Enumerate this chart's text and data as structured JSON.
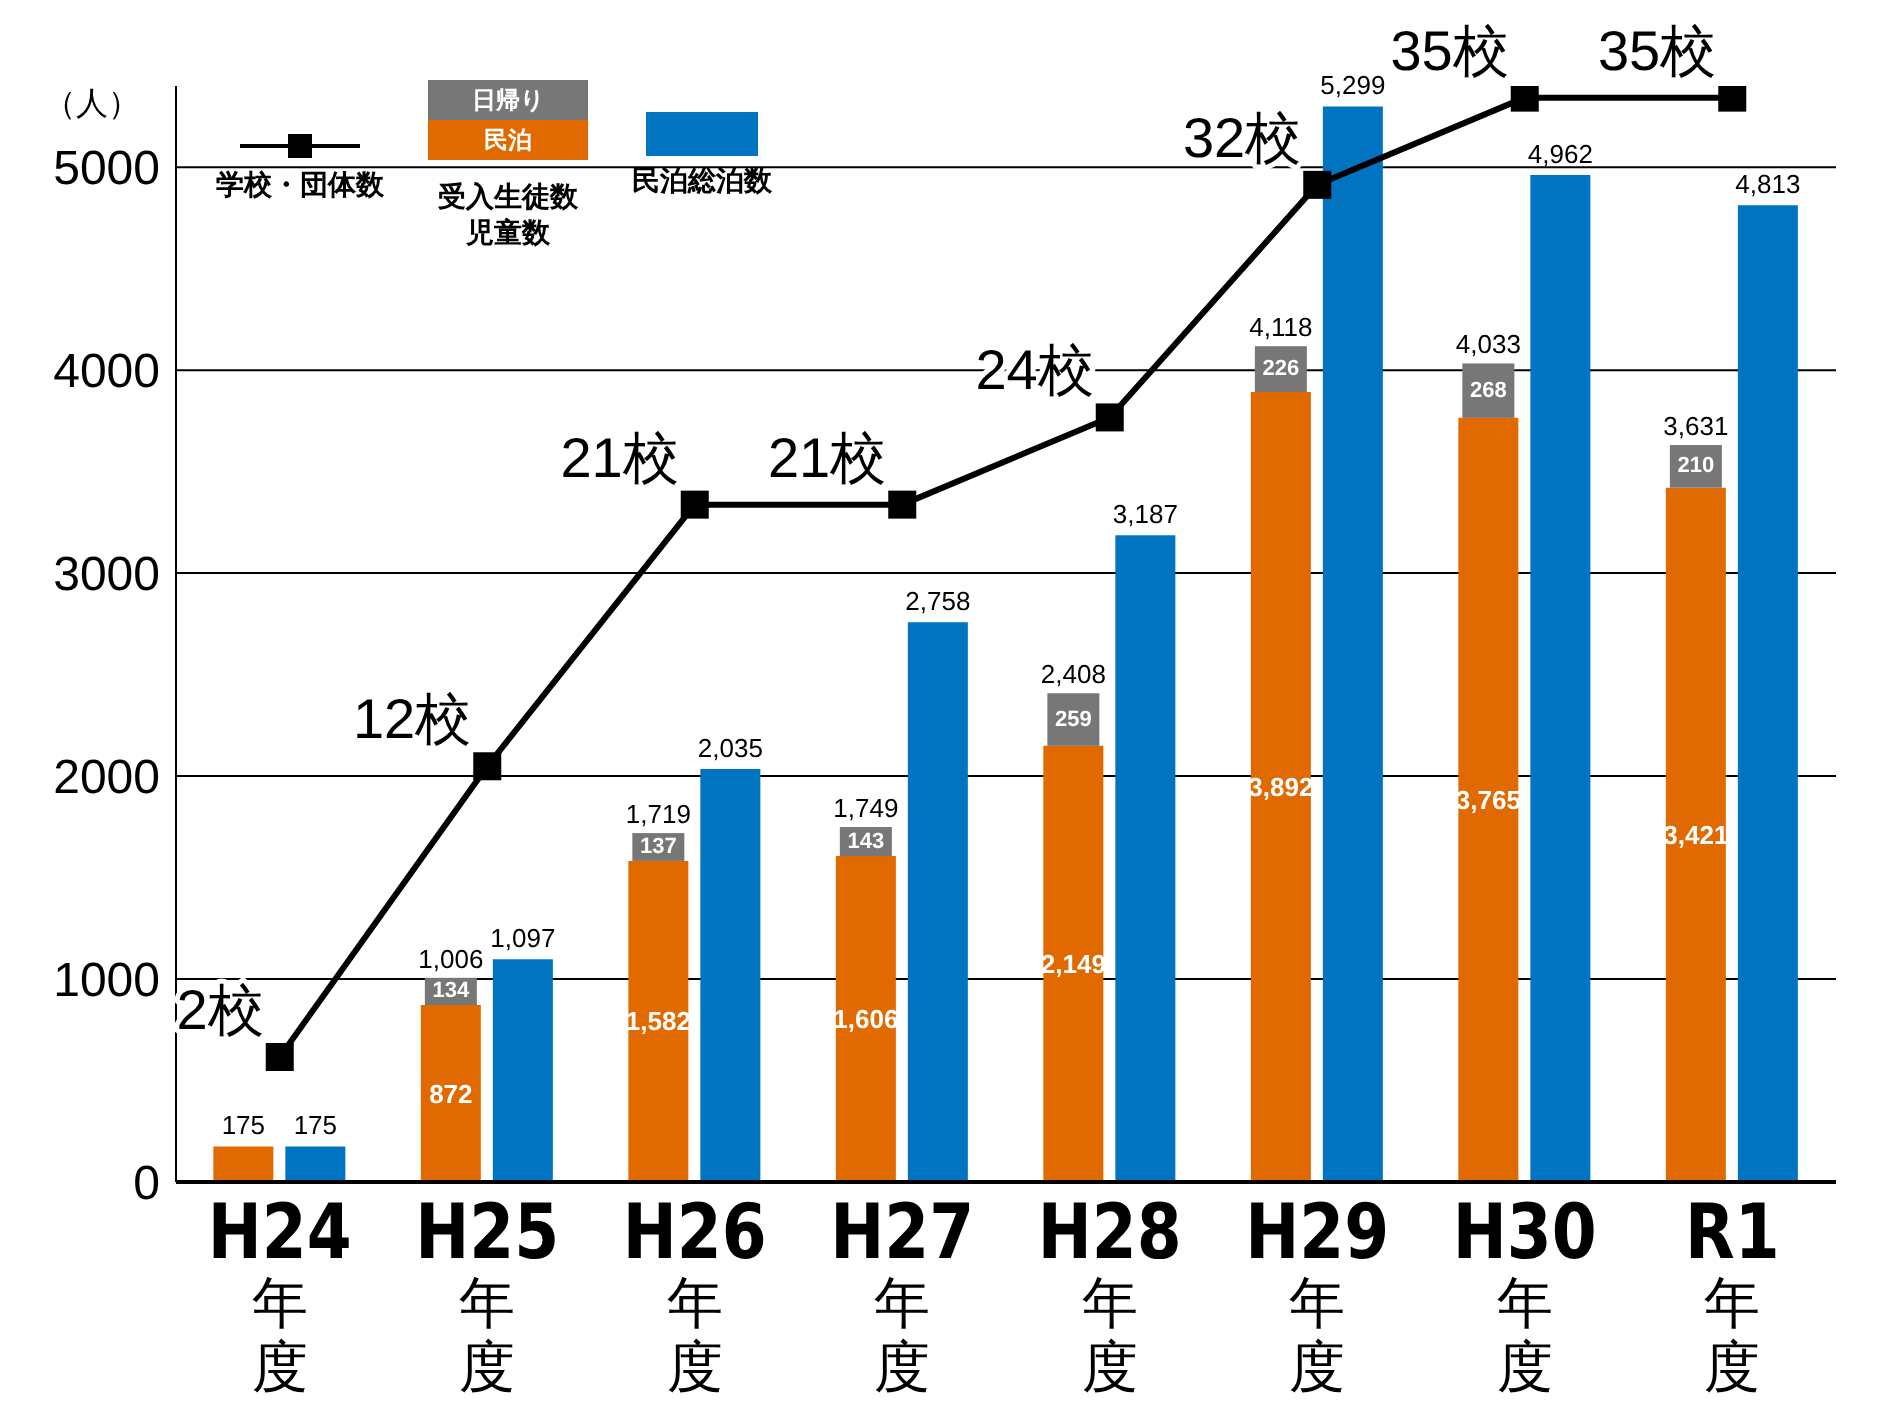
{
  "chart_data": {
    "type": "bar",
    "ylabel": "（人）",
    "legend_title": "受入生徒数児童数",
    "categories": [
      "H24年度",
      "H25年度",
      "H26年度",
      "H27年度",
      "H28年度",
      "H29年度",
      "H30年度",
      "R1年度"
    ],
    "series": [
      {
        "name": "民泊",
        "color": "#e06a00",
        "values": [
          175,
          872,
          1582,
          1606,
          2149,
          3892,
          3765,
          3421
        ],
        "value_labels": [
          "175",
          "872",
          "1,582",
          "1,606",
          "2,149",
          "3,892",
          "3,765",
          "3,421"
        ]
      },
      {
        "name": "日帰り",
        "color": "#777777",
        "base": [
          null,
          872,
          1582,
          1606,
          2149,
          3892,
          3765,
          3421
        ],
        "values": [
          null,
          134,
          137,
          143,
          259,
          226,
          268,
          210
        ],
        "value_labels": [
          null,
          "134",
          "137",
          "143",
          "259",
          "226",
          "268",
          "210"
        ]
      },
      {
        "name": "民泊総泊数",
        "color": "#0073c1",
        "values": [
          175,
          1097,
          2035,
          2758,
          3187,
          5299,
          4962,
          4813
        ],
        "value_labels": [
          "175",
          "1,097",
          "2,035",
          "2,758",
          "3,187",
          "5,299",
          "4,962",
          "4,813"
        ]
      },
      {
        "name": "学校・団体数",
        "type": "line",
        "axis": "y2",
        "color": "#000000",
        "marker": "square",
        "values": [
          2,
          12,
          21,
          21,
          24,
          32,
          35,
          35
        ],
        "value_labels": [
          "2校",
          "12校",
          "21校",
          "21校",
          "24校",
          "32校",
          "35校",
          "35校"
        ]
      }
    ],
    "annotations": [
      {
        "text": "1,006",
        "x": "H25年度",
        "y": 1006
      },
      {
        "text": "1,719",
        "x": "H26年度",
        "y": 1719
      },
      {
        "text": "1,749",
        "x": "H27年度",
        "y": 1749
      },
      {
        "text": "2,408",
        "x": "H28年度",
        "y": 2408
      },
      {
        "text": "4,118",
        "x": "H29年度",
        "y": 4118
      },
      {
        "text": "4,033",
        "x": "H30年度",
        "y": 4033
      },
      {
        "text": "3,631",
        "x": "R1年度",
        "y": 3631
      }
    ],
    "ylim": [
      0,
      5400
    ],
    "yticks": [
      0,
      1000,
      2000,
      3000,
      4000,
      5000
    ],
    "y2lim": [
      -2.3,
      35.4
    ],
    "grid": "y",
    "legend": "top left"
  }
}
